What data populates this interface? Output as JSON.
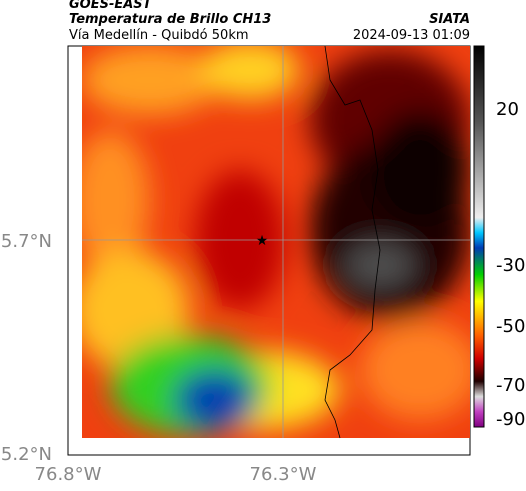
{
  "header": {
    "source": "GOES-EAST",
    "title": "Temperatura de Brillo CH13",
    "subtitle": "Vía Medellín - Quibdó 50km",
    "org": "SIATA",
    "datetime": "2024-09-13 01:09"
  },
  "map": {
    "lat_ticks": [
      "5.7°N",
      "5.2°N"
    ],
    "lon_ticks": [
      "76.8°W",
      "76.3°W"
    ]
  },
  "colorbar": {
    "ticks": [
      20,
      -30,
      -50,
      -70,
      -90
    ]
  }
}
